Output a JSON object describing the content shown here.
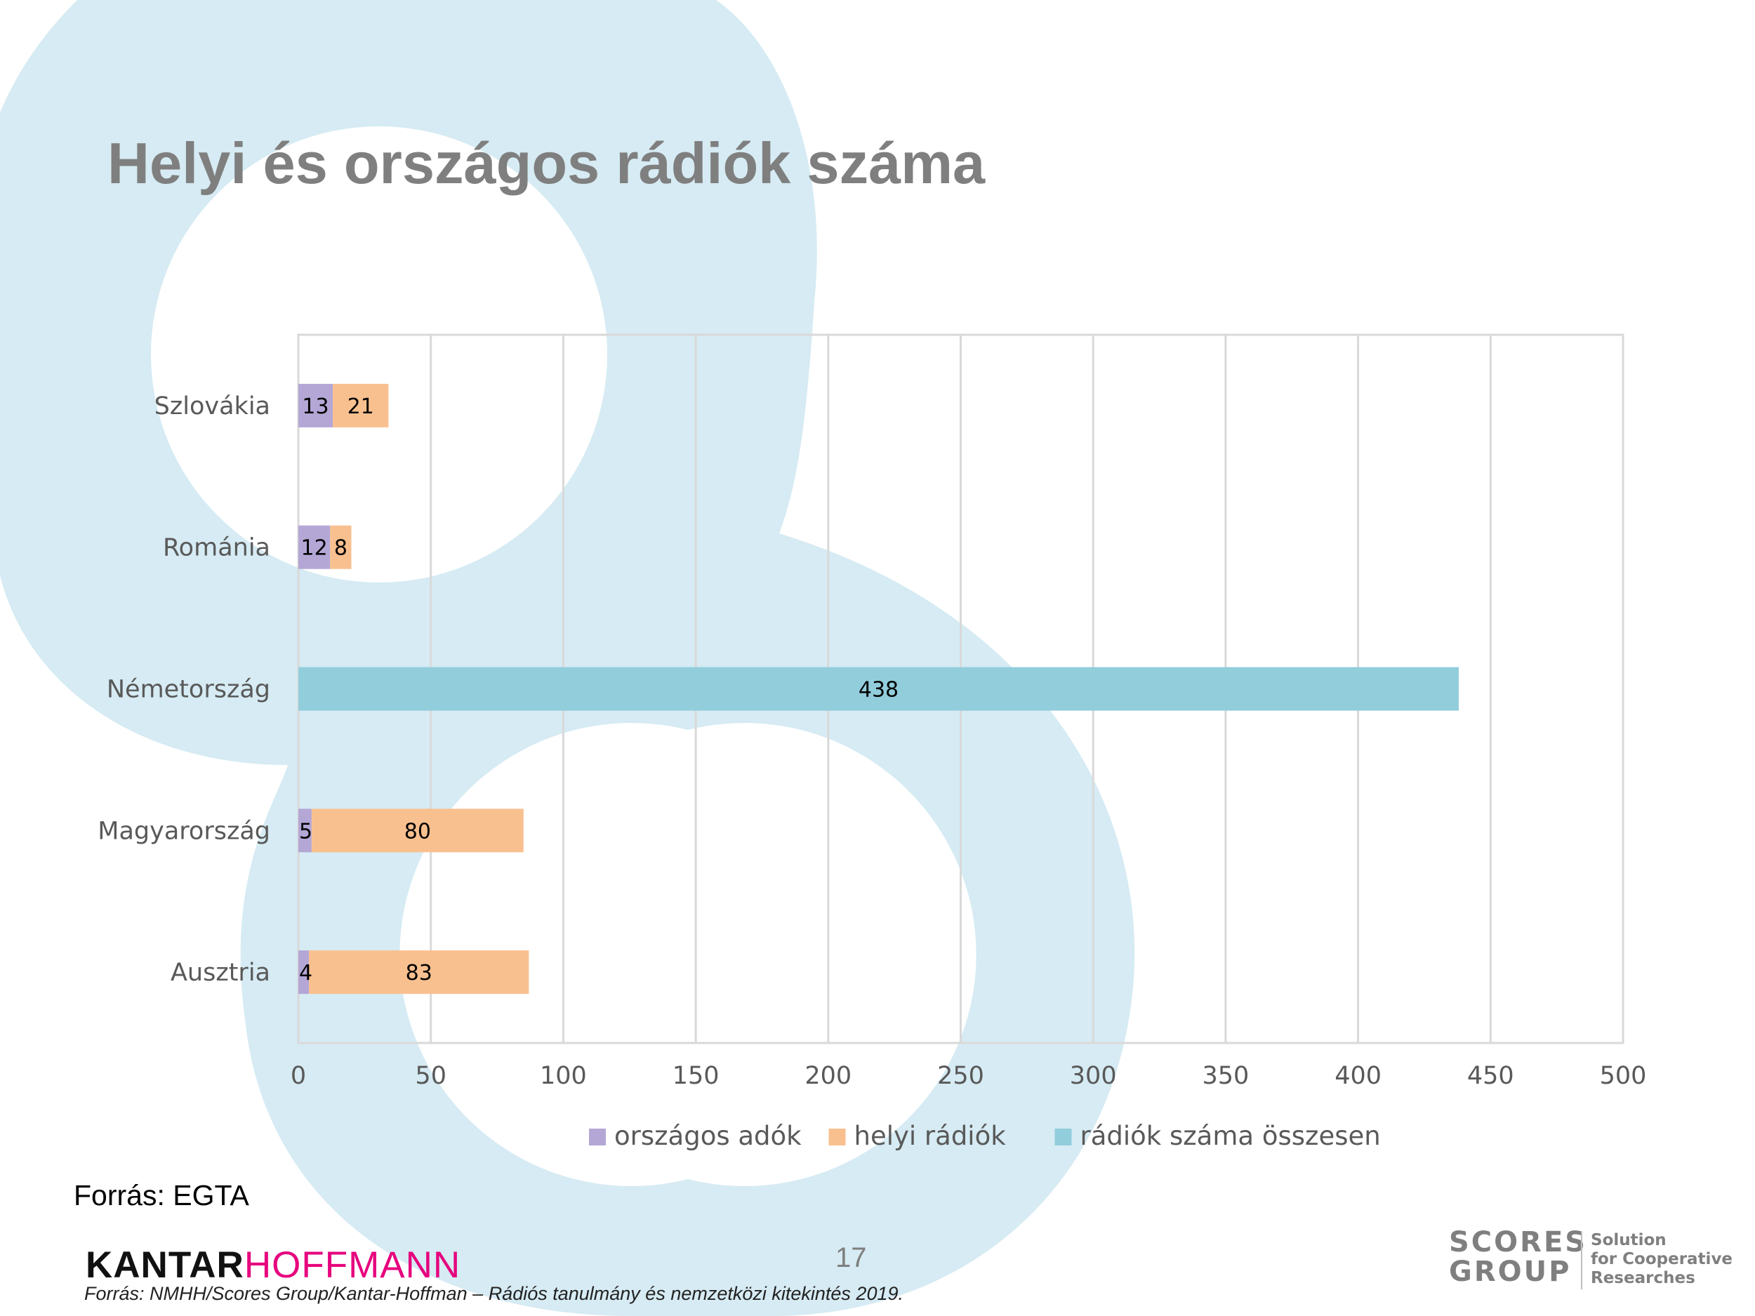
{
  "title": "Helyi és országos rádiók száma",
  "source": "Forrás: EGTA",
  "page_number": "17",
  "footer": "Forrás: NMHH/Scores Group/Kantar-Hoffman – Rádiós tanulmány és nemzetközi kitekintés 2019.",
  "logos": {
    "kantar_part1": "KANTAR",
    "kantar_part2": "HOFFMANN",
    "scores_line1": "SCORES",
    "scores_line2": "GROUP",
    "scores_tag1": "Solution",
    "scores_tag2": "for Cooperative",
    "scores_tag3": "Researches"
  },
  "colors": {
    "background_shape": "#d6ebf3",
    "title": "#7f7f7f",
    "orszagos": "#b4a7d6",
    "helyi": "#f9c08f",
    "osszesen": "#92cddc",
    "grid": "#d9d9d9",
    "text": "#595959"
  },
  "chart_data": {
    "type": "bar",
    "orientation": "horizontal",
    "stacked": true,
    "categories": [
      "Szlovákia",
      "Románia",
      "Németország",
      "Magyarország",
      "Ausztria"
    ],
    "series": [
      {
        "name": "országos adók",
        "color": "#b4a7d6",
        "values": [
          13,
          12,
          null,
          5,
          4
        ]
      },
      {
        "name": "helyi rádiók",
        "color": "#f9c08f",
        "values": [
          21,
          8,
          null,
          80,
          83
        ]
      },
      {
        "name": "rádiók száma összesen",
        "color": "#92cddc",
        "values": [
          null,
          null,
          438,
          null,
          null
        ]
      }
    ],
    "xlim": [
      0,
      500
    ],
    "xticks": [
      "0",
      "50",
      "100",
      "150",
      "200",
      "250",
      "300",
      "350",
      "400",
      "450",
      "500"
    ],
    "grid": true,
    "legend_position": "bottom"
  }
}
